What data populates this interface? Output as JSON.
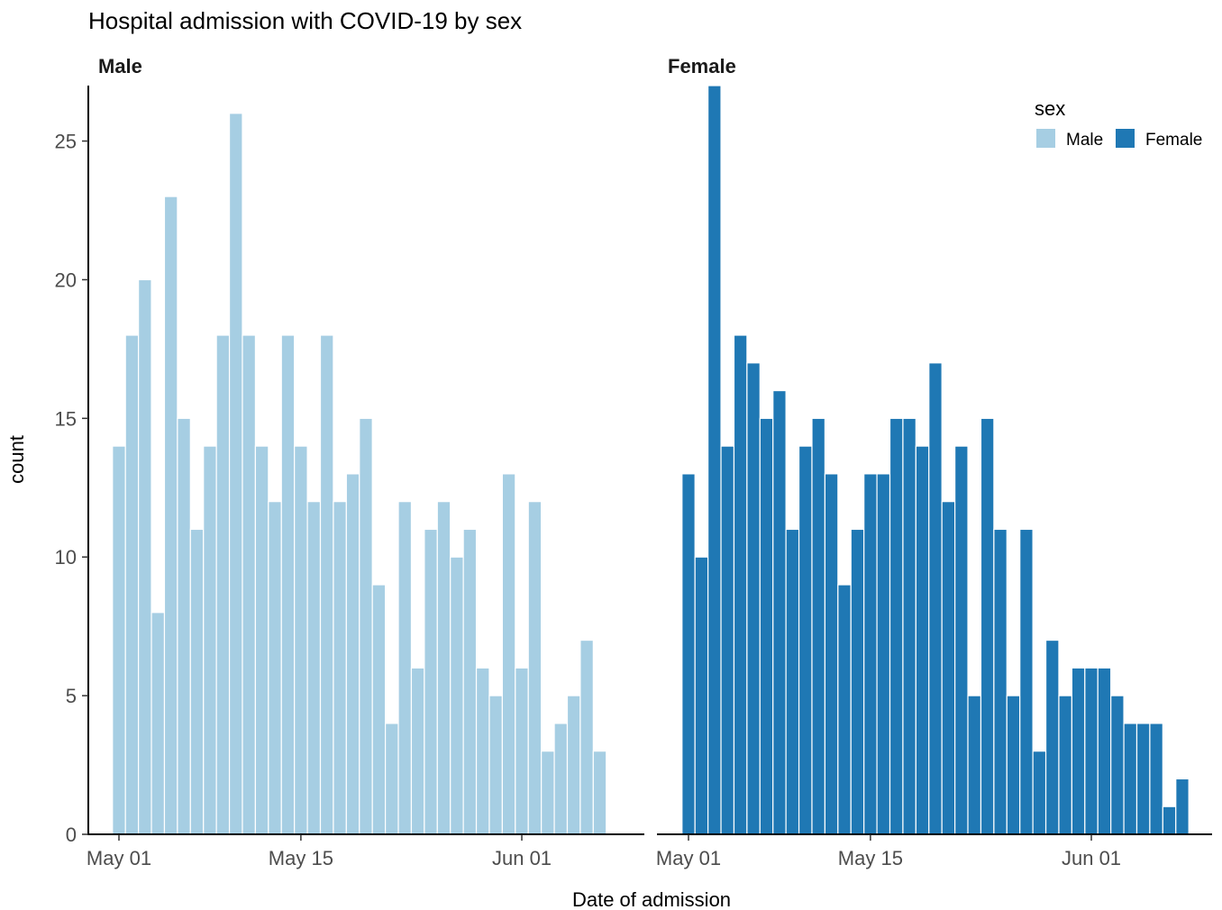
{
  "chart_data": {
    "type": "bar",
    "title": "Hospital admission with COVID-19 by sex",
    "xlabel": "Date of admission",
    "ylabel": "count",
    "ylim": [
      0,
      27
    ],
    "yticks": [
      0,
      5,
      10,
      15,
      20,
      25
    ],
    "xticks": [
      {
        "date": "2020-05-01",
        "label": "May 01"
      },
      {
        "date": "2020-05-15",
        "label": "May 15"
      },
      {
        "date": "2020-06-01",
        "label": "Jun 01"
      }
    ],
    "grid": false,
    "legend": {
      "title": "sex",
      "position": "top-right",
      "entries": [
        {
          "label": "Male",
          "color": "#a6cee3"
        },
        {
          "label": "Female",
          "color": "#1f78b4"
        }
      ]
    },
    "panels": [
      {
        "name": "Male",
        "color": "#a6cee3",
        "x_start": "2020-05-01",
        "values": [
          14,
          18,
          20,
          8,
          23,
          15,
          11,
          14,
          18,
          26,
          18,
          14,
          12,
          18,
          14,
          12,
          18,
          12,
          13,
          15,
          9,
          4,
          12,
          6,
          11,
          12,
          10,
          11,
          6,
          5,
          13,
          6,
          12,
          3,
          4,
          5,
          7,
          3
        ]
      },
      {
        "name": "Female",
        "color": "#1f78b4",
        "x_start": "2020-05-01",
        "values": [
          13,
          10,
          27,
          14,
          18,
          17,
          15,
          16,
          11,
          14,
          15,
          13,
          9,
          11,
          13,
          13,
          15,
          15,
          14,
          17,
          12,
          14,
          5,
          15,
          11,
          5,
          11,
          3,
          7,
          5,
          6,
          6,
          6,
          5,
          4,
          4,
          4,
          1,
          2
        ]
      }
    ]
  }
}
